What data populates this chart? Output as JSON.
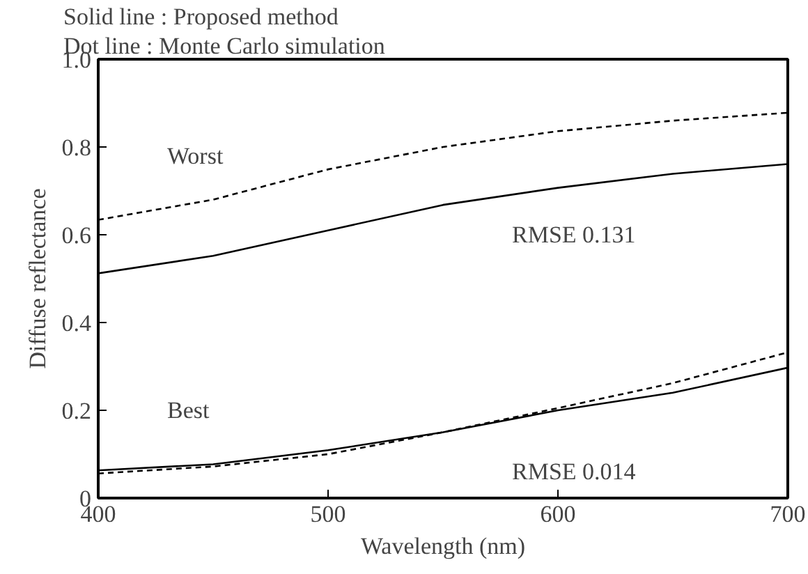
{
  "chart_data": {
    "type": "line",
    "xlabel": "Wavelength (nm)",
    "ylabel": "Diffuse reflectance",
    "xlim": [
      400,
      700
    ],
    "xticks": [
      400,
      500,
      600,
      700
    ],
    "ylim": [
      0,
      1.0
    ],
    "yticks": [
      0,
      0.2,
      0.4,
      0.6,
      0.8,
      {
        "value": 1.0,
        "label": "1.0"
      }
    ],
    "x": [
      400,
      450,
      500,
      550,
      600,
      650,
      700
    ],
    "series": [
      {
        "color": "#000000",
        "line_style": "dashed",
        "values": [
          0.634,
          0.68,
          0.749,
          0.8,
          0.836,
          0.86,
          0.878
        ]
      },
      {
        "color": "#000000",
        "line_style": "solid",
        "values": [
          0.512,
          0.552,
          0.61,
          0.668,
          0.707,
          0.739,
          0.761
        ]
      },
      {
        "color": "#000000",
        "line_style": "dashed",
        "values": [
          0.056,
          0.072,
          0.1,
          0.15,
          0.205,
          0.262,
          0.332
        ]
      },
      {
        "color": "#000000",
        "line_style": "solid",
        "values": [
          0.063,
          0.077,
          0.109,
          0.15,
          0.2,
          0.24,
          0.297
        ]
      }
    ],
    "annotations": [
      "Solid line  :  Proposed method",
      "Dot line     :  Monte Carlo simulation",
      "Worst",
      "RMSE 0.131",
      "Best",
      "RMSE 0.014"
    ],
    "grid": false
  }
}
